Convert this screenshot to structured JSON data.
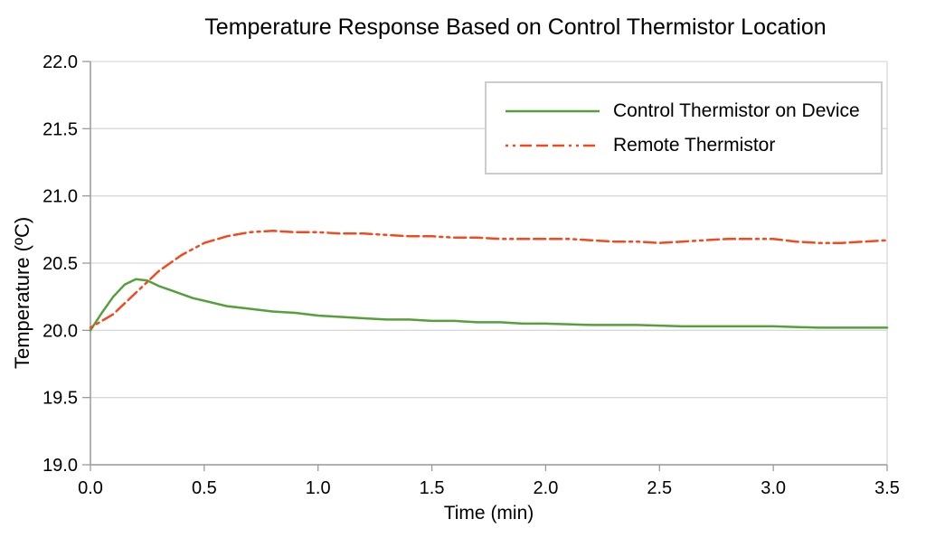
{
  "chart_data": {
    "type": "line",
    "title": "Temperature Response Based on Control Thermistor Location",
    "xlabel": "Time (min)",
    "ylabel": "Temperature (ºC)",
    "xlim": [
      0,
      3.5
    ],
    "ylim": [
      19.0,
      22.0
    ],
    "xtick_labels": [
      "0.0",
      "0.5",
      "1.0",
      "1.5",
      "2.0",
      "2.5",
      "3.0",
      "3.5"
    ],
    "ytick_labels": [
      "19.0",
      "19.5",
      "20.0",
      "20.5",
      "21.0",
      "21.5",
      "22.0"
    ],
    "grid": "horizontal",
    "grid_color": "#d9d9d9",
    "axis_color": "#9a9a9a",
    "legend_position": "top-right-inside",
    "series": [
      {
        "name": "Control Thermistor on Device",
        "color": "#55a03c",
        "style": "solid",
        "points": [
          [
            0.0,
            20.0
          ],
          [
            0.05,
            20.13
          ],
          [
            0.1,
            20.25
          ],
          [
            0.15,
            20.34
          ],
          [
            0.2,
            20.38
          ],
          [
            0.25,
            20.37
          ],
          [
            0.3,
            20.33
          ],
          [
            0.35,
            20.3
          ],
          [
            0.4,
            20.27
          ],
          [
            0.45,
            20.24
          ],
          [
            0.5,
            20.22
          ],
          [
            0.6,
            20.18
          ],
          [
            0.7,
            20.16
          ],
          [
            0.8,
            20.14
          ],
          [
            0.9,
            20.13
          ],
          [
            1.0,
            20.11
          ],
          [
            1.1,
            20.1
          ],
          [
            1.2,
            20.09
          ],
          [
            1.3,
            20.08
          ],
          [
            1.4,
            20.08
          ],
          [
            1.5,
            20.07
          ],
          [
            1.6,
            20.07
          ],
          [
            1.7,
            20.06
          ],
          [
            1.8,
            20.06
          ],
          [
            1.9,
            20.05
          ],
          [
            2.0,
            20.05
          ],
          [
            2.2,
            20.04
          ],
          [
            2.4,
            20.04
          ],
          [
            2.6,
            20.03
          ],
          [
            2.8,
            20.03
          ],
          [
            3.0,
            20.03
          ],
          [
            3.2,
            20.02
          ],
          [
            3.4,
            20.02
          ],
          [
            3.5,
            20.02
          ]
        ]
      },
      {
        "name": "Remote Thermistor",
        "color": "#f04a1e",
        "style": "dot-dot-dash-dash-dash",
        "points": [
          [
            0.0,
            20.02
          ],
          [
            0.1,
            20.12
          ],
          [
            0.2,
            20.28
          ],
          [
            0.3,
            20.44
          ],
          [
            0.4,
            20.56
          ],
          [
            0.5,
            20.65
          ],
          [
            0.6,
            20.7
          ],
          [
            0.7,
            20.73
          ],
          [
            0.8,
            20.74
          ],
          [
            0.9,
            20.73
          ],
          [
            1.0,
            20.73
          ],
          [
            1.1,
            20.72
          ],
          [
            1.2,
            20.72
          ],
          [
            1.3,
            20.71
          ],
          [
            1.4,
            20.7
          ],
          [
            1.5,
            20.7
          ],
          [
            1.6,
            20.69
          ],
          [
            1.7,
            20.69
          ],
          [
            1.8,
            20.68
          ],
          [
            1.9,
            20.68
          ],
          [
            2.0,
            20.68
          ],
          [
            2.1,
            20.68
          ],
          [
            2.2,
            20.67
          ],
          [
            2.3,
            20.66
          ],
          [
            2.4,
            20.66
          ],
          [
            2.5,
            20.65
          ],
          [
            2.6,
            20.66
          ],
          [
            2.7,
            20.67
          ],
          [
            2.8,
            20.68
          ],
          [
            2.9,
            20.68
          ],
          [
            3.0,
            20.68
          ],
          [
            3.1,
            20.66
          ],
          [
            3.2,
            20.65
          ],
          [
            3.3,
            20.65
          ],
          [
            3.4,
            20.66
          ],
          [
            3.5,
            20.67
          ]
        ]
      }
    ]
  }
}
